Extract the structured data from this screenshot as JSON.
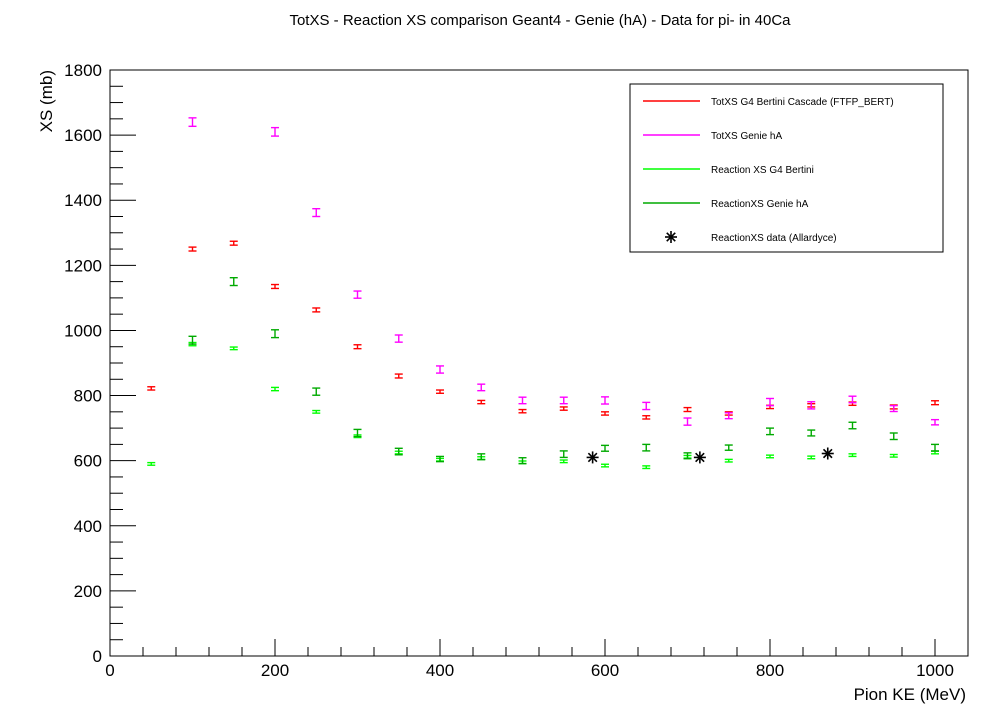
{
  "chart_data": {
    "type": "scatter",
    "title": "TotXS - Reaction XS comparison Geant4 - Genie (hA) - Data for pi- in 40Ca",
    "xlabel": "Pion KE (MeV)",
    "ylabel": "XS (mb)",
    "xlim": [
      0,
      1040
    ],
    "ylim": [
      0,
      1800
    ],
    "xticks": [
      0,
      200,
      400,
      600,
      800,
      1000
    ],
    "xtick_labels": [
      "0",
      "200",
      "400",
      "600",
      "800",
      "1000"
    ],
    "yticks": [
      0,
      200,
      400,
      600,
      800,
      1000,
      1200,
      1400,
      1600,
      1800
    ],
    "ytick_labels": [
      "0",
      "200",
      "400",
      "600",
      "800",
      "1000",
      "1200",
      "1400",
      "1600",
      "1800"
    ],
    "grid": false,
    "legend_position": "top-right",
    "series": [
      {
        "name": "TotXS G4 Bertini Cascade (FTFP_BERT)",
        "color": "#ff0000",
        "marker": "errorbar",
        "x": [
          50,
          100,
          150,
          200,
          250,
          300,
          350,
          400,
          450,
          500,
          550,
          600,
          650,
          700,
          750,
          800,
          850,
          900,
          950,
          1000
        ],
        "y": [
          822,
          1250,
          1268,
          1135,
          1063,
          950,
          860,
          812,
          780,
          752,
          760,
          745,
          733,
          757,
          745,
          765,
          770,
          775,
          765,
          778
        ],
        "err": [
          5,
          6,
          6,
          6,
          6,
          6,
          6,
          5,
          5,
          5,
          5,
          5,
          5,
          6,
          5,
          5,
          5,
          5,
          6,
          6
        ]
      },
      {
        "name": "TotXS Genie hA",
        "color": "#ff00ff",
        "marker": "errorbar",
        "x": [
          100,
          200,
          250,
          300,
          350,
          400,
          450,
          500,
          550,
          600,
          650,
          700,
          750,
          800,
          850,
          900,
          950,
          1000
        ],
        "y": [
          1640,
          1610,
          1362,
          1110,
          975,
          880,
          825,
          785,
          785,
          785,
          768,
          720,
          738,
          780,
          770,
          788,
          760,
          718
        ],
        "err": [
          13,
          13,
          12,
          11,
          11,
          11,
          10,
          10,
          10,
          11,
          11,
          11,
          9,
          11,
          11,
          10,
          9,
          8
        ]
      },
      {
        "name": "Reaction XS G4 Bertini",
        "color": "#00ff00",
        "marker": "errorbar",
        "x": [
          50,
          100,
          150,
          200,
          250,
          300,
          350,
          400,
          450,
          500,
          550,
          600,
          650,
          700,
          750,
          800,
          850,
          900,
          950,
          1000
        ],
        "y": [
          590,
          958,
          945,
          820,
          750,
          675,
          625,
          603,
          608,
          595,
          598,
          585,
          580,
          612,
          600,
          613,
          610,
          617,
          615,
          625
        ],
        "err": [
          4,
          5,
          4,
          5,
          4,
          4,
          4,
          4,
          4,
          4,
          4,
          4,
          4,
          4,
          4,
          4,
          4,
          4,
          4,
          4
        ]
      },
      {
        "name": "ReactionXS Genie hA",
        "color": "#00aa00",
        "marker": "errorbar",
        "x": [
          100,
          150,
          200,
          250,
          300,
          350,
          400,
          450,
          500,
          550,
          600,
          650,
          700,
          750,
          800,
          850,
          900,
          950,
          1000
        ],
        "y": [
          970,
          1150,
          990,
          812,
          685,
          628,
          605,
          612,
          600,
          620,
          638,
          640,
          615,
          640,
          690,
          685,
          708,
          675,
          640
        ],
        "err": [
          12,
          12,
          12,
          11,
          11,
          10,
          8,
          9,
          9,
          10,
          9,
          10,
          9,
          8,
          10,
          9,
          10,
          10,
          10
        ]
      },
      {
        "name": "ReactionXS data (Allardyce)",
        "color": "#000000",
        "marker": "star",
        "x": [
          585,
          715,
          870
        ],
        "y": [
          610,
          610,
          622
        ]
      }
    ]
  }
}
